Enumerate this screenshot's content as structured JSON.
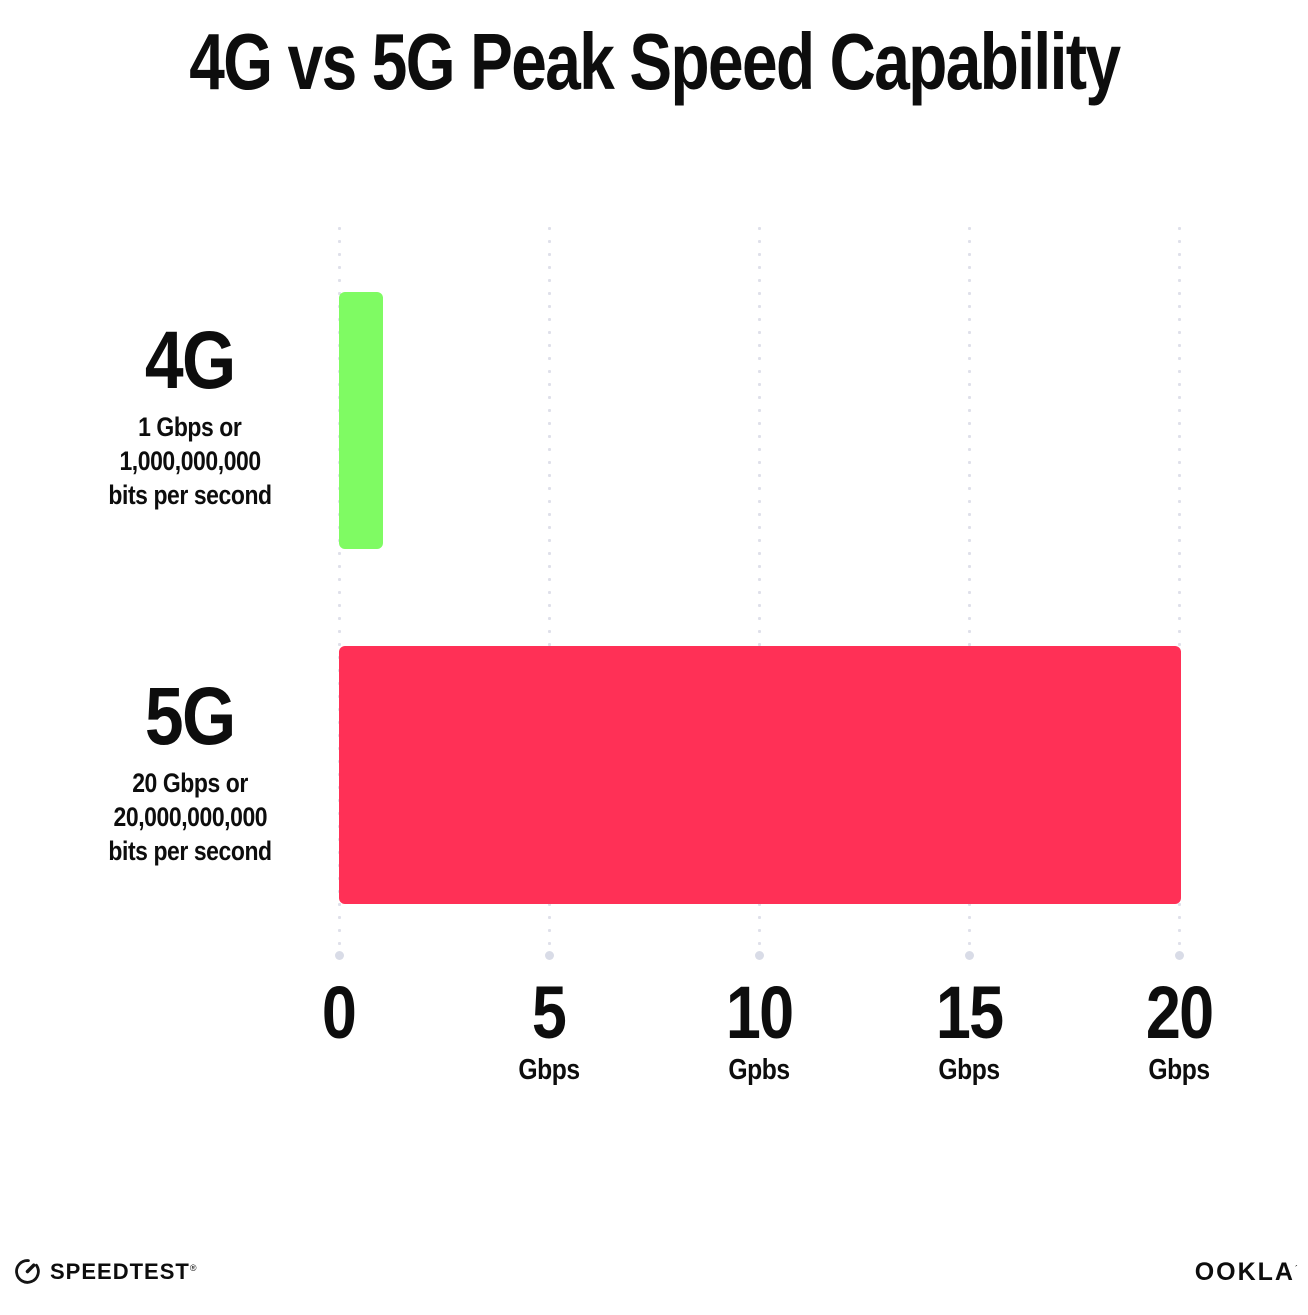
{
  "title": "4G vs 5G Peak Speed Capability",
  "chart_data": {
    "type": "bar",
    "orientation": "horizontal",
    "title": "4G vs 5G Peak Speed Capability",
    "categories": [
      "4G",
      "5G"
    ],
    "values": [
      1,
      20
    ],
    "value_unit": "Gbps",
    "xlim": [
      0,
      20
    ],
    "grid": "vertical dotted gridlines at 0, 5, 10, 15, 20",
    "legend_position": "none",
    "x_ticks": [
      {
        "value": "0",
        "unit": ""
      },
      {
        "value": "5",
        "unit": "Gbps"
      },
      {
        "value": "10",
        "unit": "Gpbs"
      },
      {
        "value": "15",
        "unit": "Gbps"
      },
      {
        "value": "20",
        "unit": "Gbps"
      }
    ],
    "bars": [
      {
        "label": "4G",
        "value": 1,
        "color": "#7FFB63",
        "desc_lines": [
          "1 Gbps or",
          "1,000,000,000",
          "bits per second"
        ]
      },
      {
        "label": "5G",
        "value": 20,
        "color": "#FF3056",
        "desc_lines": [
          "20 Gbps or",
          "20,000,000,000",
          "bits per second"
        ]
      }
    ]
  },
  "footer": {
    "speedtest_label": "SPEEDTEST",
    "speedtest_mark": "®",
    "ookla_label": "OOKLA",
    "ookla_mark": "´"
  },
  "colors": {
    "bar_4g": "#7FFB63",
    "bar_5g": "#FF3056",
    "grid_dot": "#DFE0EA",
    "axis_end_dot": "#D9DCE7",
    "text": "#0D0D0D",
    "background": "#FFFFFF"
  }
}
